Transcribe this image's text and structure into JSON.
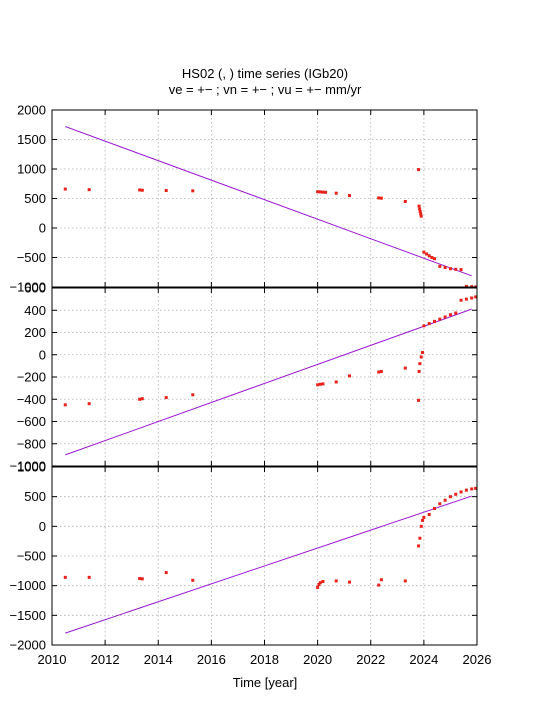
{
  "title_line1": "HS02 (, ) time series (IGb20)",
  "title_line2": "ve =  +− ; vn =  +− ; vu =  +−  mm/yr",
  "chart_data": [
    {
      "type": "scatter",
      "panel": "east",
      "xlim": [
        2010,
        2026
      ],
      "ylim": [
        -1000,
        2000
      ],
      "yticks": [
        -1000,
        -500,
        0,
        500,
        1000,
        1500,
        2000
      ],
      "grid": true,
      "points": [
        [
          2010.5,
          660
        ],
        [
          2011.4,
          650
        ],
        [
          2013.3,
          645
        ],
        [
          2013.4,
          640
        ],
        [
          2014.3,
          635
        ],
        [
          2015.3,
          630
        ],
        [
          2020.0,
          615
        ],
        [
          2020.1,
          612
        ],
        [
          2020.2,
          608
        ],
        [
          2020.3,
          605
        ],
        [
          2020.7,
          590
        ],
        [
          2021.2,
          550
        ],
        [
          2022.3,
          510
        ],
        [
          2022.4,
          505
        ],
        [
          2023.3,
          450
        ],
        [
          2023.8,
          990
        ],
        [
          2023.82,
          370
        ],
        [
          2023.84,
          320
        ],
        [
          2023.86,
          280
        ],
        [
          2023.88,
          240
        ],
        [
          2023.9,
          200
        ],
        [
          2024.0,
          -410
        ],
        [
          2024.1,
          -440
        ],
        [
          2024.2,
          -470
        ],
        [
          2024.3,
          -500
        ],
        [
          2024.4,
          -520
        ],
        [
          2024.6,
          -650
        ],
        [
          2024.8,
          -670
        ],
        [
          2025.0,
          -690
        ],
        [
          2025.2,
          -700
        ],
        [
          2025.4,
          -705
        ],
        [
          2025.6,
          -990
        ],
        [
          2025.8,
          -995
        ],
        [
          2025.95,
          -1000
        ]
      ],
      "trend": [
        [
          2010.5,
          1720
        ],
        [
          2025.8,
          -810
        ]
      ]
    },
    {
      "type": "scatter",
      "panel": "north",
      "xlim": [
        2010,
        2026
      ],
      "ylim": [
        -1000,
        600
      ],
      "yticks": [
        -1000,
        -800,
        -600,
        -400,
        -200,
        0,
        200,
        400,
        600
      ],
      "grid": true,
      "points": [
        [
          2010.5,
          -450
        ],
        [
          2011.4,
          -440
        ],
        [
          2013.3,
          -400
        ],
        [
          2013.4,
          -395
        ],
        [
          2014.3,
          -385
        ],
        [
          2015.3,
          -360
        ],
        [
          2020.0,
          -270
        ],
        [
          2020.1,
          -265
        ],
        [
          2020.2,
          -262
        ],
        [
          2020.7,
          -245
        ],
        [
          2021.2,
          -190
        ],
        [
          2022.3,
          -155
        ],
        [
          2022.4,
          -150
        ],
        [
          2023.3,
          -120
        ],
        [
          2023.8,
          -410
        ],
        [
          2023.82,
          -150
        ],
        [
          2023.85,
          -80
        ],
        [
          2023.9,
          -20
        ],
        [
          2023.95,
          20
        ],
        [
          2024.0,
          260
        ],
        [
          2024.2,
          280
        ],
        [
          2024.4,
          300
        ],
        [
          2024.6,
          320
        ],
        [
          2024.8,
          340
        ],
        [
          2025.0,
          360
        ],
        [
          2025.2,
          375
        ],
        [
          2025.4,
          490
        ],
        [
          2025.6,
          500
        ],
        [
          2025.8,
          510
        ],
        [
          2025.95,
          520
        ]
      ],
      "trend": [
        [
          2010.5,
          -900
        ],
        [
          2025.8,
          410
        ]
      ]
    },
    {
      "type": "scatter",
      "panel": "up",
      "xlim": [
        2010,
        2026
      ],
      "ylim": [
        -2000,
        1000
      ],
      "yticks": [
        -2000,
        -1500,
        -1000,
        -500,
        0,
        500,
        1000
      ],
      "xticks": [
        2010,
        2012,
        2014,
        2016,
        2018,
        2020,
        2022,
        2024,
        2026
      ],
      "xlabel": "Time [year]",
      "grid": true,
      "points": [
        [
          2010.5,
          -860
        ],
        [
          2011.4,
          -860
        ],
        [
          2013.3,
          -880
        ],
        [
          2013.4,
          -885
        ],
        [
          2014.3,
          -780
        ],
        [
          2015.3,
          -910
        ],
        [
          2020.0,
          -1030
        ],
        [
          2020.05,
          -980
        ],
        [
          2020.1,
          -950
        ],
        [
          2020.2,
          -930
        ],
        [
          2020.7,
          -920
        ],
        [
          2021.2,
          -940
        ],
        [
          2022.3,
          -990
        ],
        [
          2022.4,
          -900
        ],
        [
          2023.3,
          -920
        ],
        [
          2023.8,
          -330
        ],
        [
          2023.85,
          -200
        ],
        [
          2023.9,
          0
        ],
        [
          2023.95,
          100
        ],
        [
          2024.0,
          150
        ],
        [
          2024.2,
          200
        ],
        [
          2024.4,
          300
        ],
        [
          2024.6,
          380
        ],
        [
          2024.8,
          440
        ],
        [
          2025.0,
          500
        ],
        [
          2025.2,
          540
        ],
        [
          2025.4,
          580
        ],
        [
          2025.6,
          610
        ],
        [
          2025.8,
          630
        ],
        [
          2025.95,
          640
        ]
      ],
      "trend": [
        [
          2010.5,
          -1800
        ],
        [
          2025.8,
          510
        ]
      ]
    }
  ],
  "colors": {
    "points": "#e8221b",
    "trend": "#9a17d3",
    "grid": "#b0b0b0",
    "axis": "#000000"
  }
}
